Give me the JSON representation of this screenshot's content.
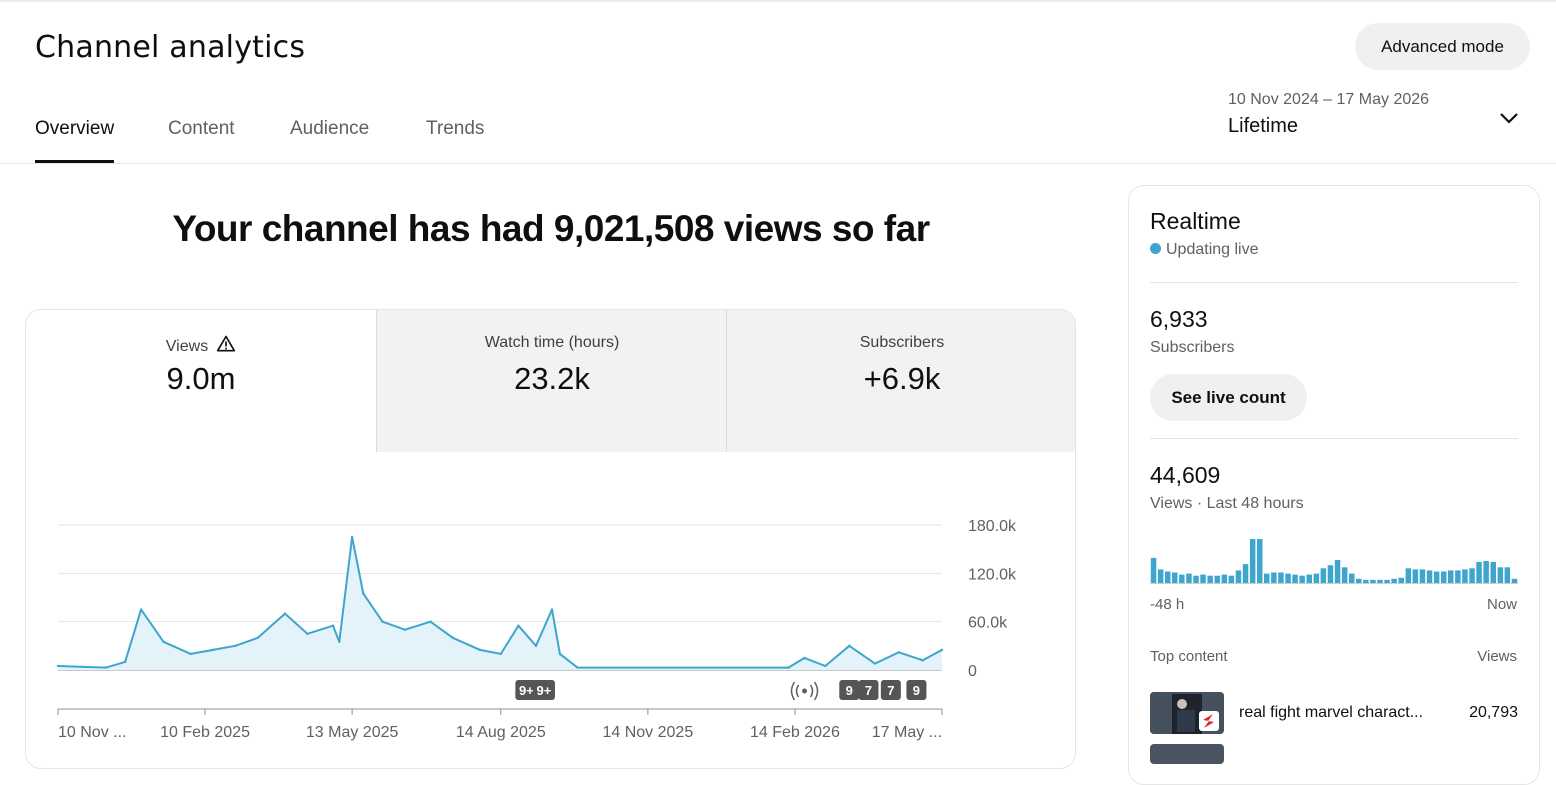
{
  "header": {
    "title": "Channel analytics",
    "advanced_mode": "Advanced mode"
  },
  "tabs": [
    {
      "label": "Overview",
      "active": true
    },
    {
      "label": "Content",
      "active": false
    },
    {
      "label": "Audience",
      "active": false
    },
    {
      "label": "Trends",
      "active": false
    }
  ],
  "date_range": {
    "dates": "10 Nov 2024 – 17 May 2026",
    "label": "Lifetime",
    "icon": "chevron-down-icon"
  },
  "headline": "Your channel has had 9,021,508 views so far",
  "metrics": [
    {
      "label": "Views",
      "value": "9.0m",
      "warning": true
    },
    {
      "label": "Watch time (hours)",
      "value": "23.2k"
    },
    {
      "label": "Subscribers",
      "value": "+6.9k"
    }
  ],
  "chart_data": {
    "type": "area",
    "title": "",
    "xlabel": "",
    "ylabel": "",
    "ylim": [
      0,
      180000
    ],
    "y_ticks": [
      "180.0k",
      "120.0k",
      "60.0k",
      "0"
    ],
    "x_ticks": [
      "10 Nov ...",
      "10 Feb 2025",
      "13 May 2025",
      "14 Aug 2025",
      "14 Nov 2025",
      "14 Feb 2026",
      "17 May ..."
    ],
    "series": [
      {
        "x": [
          "2024-11-10",
          "2024-12-10",
          "2024-12-22",
          "2025-01-01",
          "2025-01-15",
          "2025-02-01",
          "2025-02-15",
          "2025-03-01",
          "2025-03-15",
          "2025-04-01",
          "2025-04-15",
          "2025-05-01",
          "2025-05-05",
          "2025-05-13",
          "2025-05-20",
          "2025-06-01",
          "2025-06-15",
          "2025-07-01",
          "2025-07-15",
          "2025-08-01",
          "2025-08-14",
          "2025-08-25",
          "2025-09-05",
          "2025-09-15",
          "2025-09-20",
          "2025-10-01",
          "2026-02-10",
          "2026-02-20",
          "2026-03-05",
          "2026-03-20",
          "2026-04-05",
          "2026-04-20",
          "2026-05-05",
          "2026-05-17"
        ],
        "values": [
          5000,
          3000,
          10000,
          75000,
          35000,
          20000,
          25000,
          30000,
          40000,
          70000,
          45000,
          55000,
          35000,
          165000,
          95000,
          60000,
          50000,
          60000,
          40000,
          25000,
          20000,
          55000,
          30000,
          75000,
          20000,
          3000,
          3000,
          15000,
          5000,
          30000,
          8000,
          22000,
          12000,
          25000
        ],
        "color": "#3ea6cc"
      }
    ],
    "annotations": [
      {
        "label": "9+",
        "x": "2025-08-30"
      },
      {
        "label": "9+",
        "x": "2025-09-10"
      },
      {
        "icon": "live-broadcast-icon",
        "x": "2026-02-20"
      },
      {
        "label": "9",
        "x": "2026-03-20"
      },
      {
        "label": "7",
        "x": "2026-04-01"
      },
      {
        "label": "7",
        "x": "2026-04-15"
      },
      {
        "label": "9",
        "x": "2026-05-01"
      }
    ]
  },
  "realtime": {
    "title": "Realtime",
    "status": "Updating live",
    "subscribers_value": "6,933",
    "subscribers_label": "Subscribers",
    "live_count_button": "See live count",
    "views_value": "44,609",
    "views_label": "Views · Last 48 hours",
    "spark_left": "-48 h",
    "spark_right": "Now",
    "spark_values": [
      24,
      13,
      11,
      10,
      8,
      9,
      7,
      8,
      7,
      7,
      8,
      7,
      12,
      18,
      42,
      42,
      9,
      10,
      10,
      9,
      8,
      7,
      8,
      9,
      14,
      17,
      22,
      15,
      9,
      4,
      3,
      3,
      3,
      3,
      4,
      5,
      14,
      13,
      13,
      12,
      11,
      11,
      12,
      12,
      13,
      14,
      20,
      21,
      20,
      15,
      15,
      4
    ],
    "top_content_label": "Top content",
    "top_content_views_label": "Views",
    "top_content": [
      {
        "title": "real fight marvel charact...",
        "views": "20,793"
      }
    ]
  }
}
